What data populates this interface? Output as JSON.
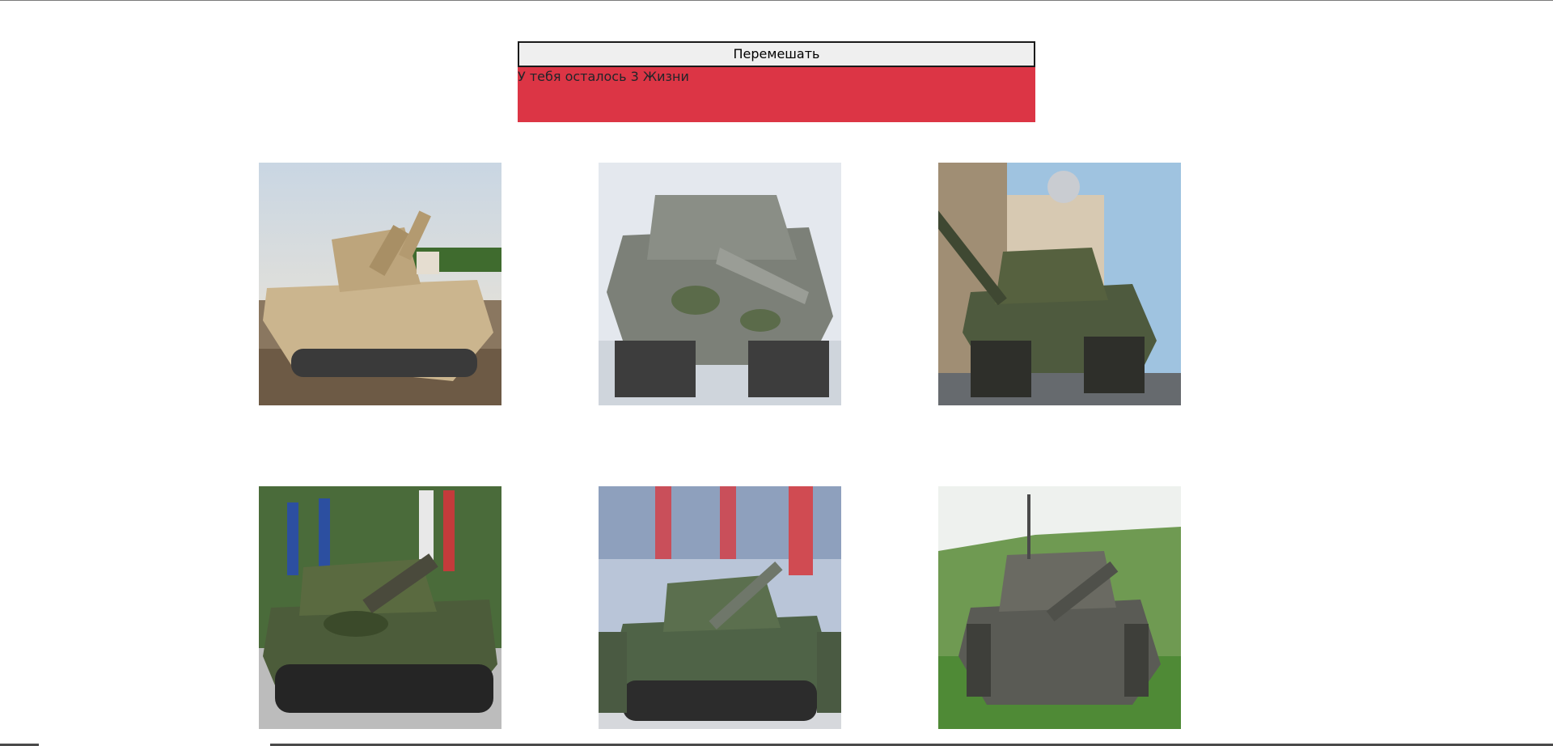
{
  "controls": {
    "shuffle_label": "Перемешать",
    "lives_text": "У тебя осталось 3 Жизни"
  },
  "theme": {
    "lives_bg": "#dc3545",
    "button_bg": "#efefef"
  },
  "cards": [
    {
      "icon": "tank-desert-photo"
    },
    {
      "icon": "tank-grey-camo-photo"
    },
    {
      "icon": "tank-green-parade-photo"
    },
    {
      "icon": "tank-french-parade-photo"
    },
    {
      "icon": "tank-chinese-parade-photo"
    },
    {
      "icon": "tank-field-camo-photo"
    }
  ]
}
